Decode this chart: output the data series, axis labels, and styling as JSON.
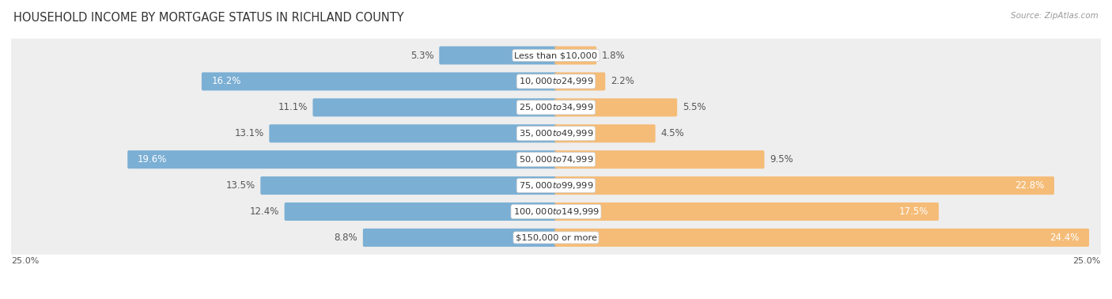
{
  "title": "HOUSEHOLD INCOME BY MORTGAGE STATUS IN RICHLAND COUNTY",
  "source": "Source: ZipAtlas.com",
  "categories": [
    "Less than $10,000",
    "$10,000 to $24,999",
    "$25,000 to $34,999",
    "$35,000 to $49,999",
    "$50,000 to $74,999",
    "$75,000 to $99,999",
    "$100,000 to $149,999",
    "$150,000 or more"
  ],
  "without_mortgage": [
    5.3,
    16.2,
    11.1,
    13.1,
    19.6,
    13.5,
    12.4,
    8.8
  ],
  "with_mortgage": [
    1.8,
    2.2,
    5.5,
    4.5,
    9.5,
    22.8,
    17.5,
    24.4
  ],
  "color_without": "#7BAFD4",
  "color_with": "#F5BC78",
  "axis_limit": 25.0,
  "title_fontsize": 10.5,
  "label_fontsize": 8.5,
  "bar_height": 0.58,
  "bg_color": "#FFFFFF",
  "row_bg": "#EEEEEE",
  "threshold_white_label": 14.0
}
